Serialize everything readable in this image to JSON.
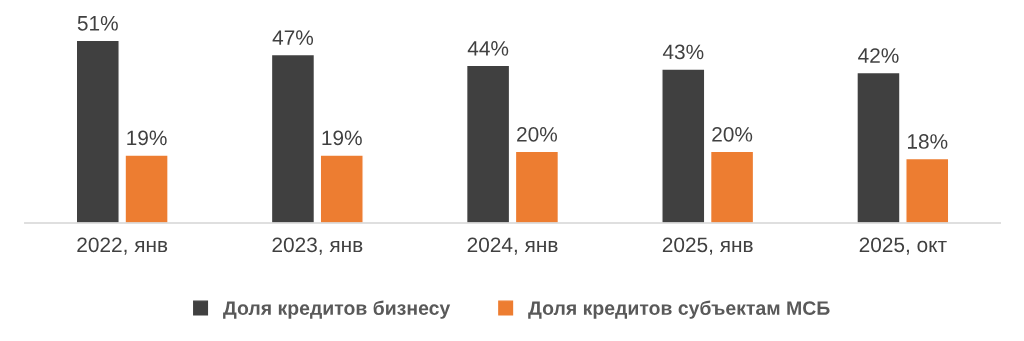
{
  "chart_data": {
    "type": "bar",
    "categories": [
      "2022, янв",
      "2023, янв",
      "2024, янв",
      "2025, янв",
      "2025, окт"
    ],
    "series": [
      {
        "name": "Доля кредитов бизнесу",
        "color": "#404040",
        "values": [
          51,
          47,
          44,
          43,
          42
        ],
        "value_labels": [
          "51%",
          "47%",
          "44%",
          "43%",
          "42%"
        ]
      },
      {
        "name": "Доля кредитов субъектам МСБ",
        "color": "#ed7d31",
        "values": [
          19,
          19,
          20,
          20,
          18
        ],
        "value_labels": [
          "19%",
          "19%",
          "20%",
          "20%",
          "18%"
        ]
      }
    ],
    "legend": "bottom"
  }
}
